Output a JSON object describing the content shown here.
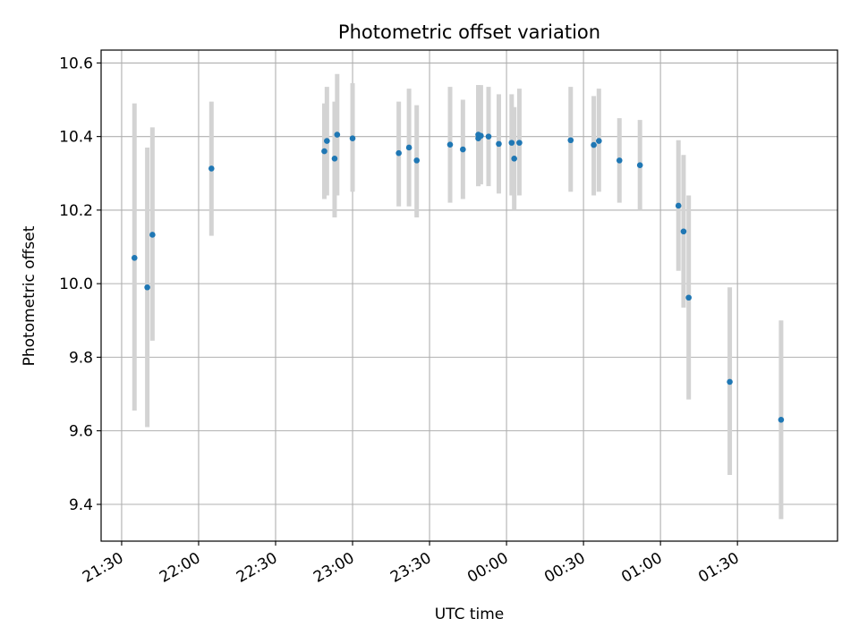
{
  "chart_data": {
    "type": "scatter",
    "title": "Photometric offset variation",
    "xlabel": "UTC time",
    "ylabel": "Photometric offset",
    "grid": true,
    "xlim": [
      "21:22",
      "02:09"
    ],
    "ylim": [
      9.3,
      10.635
    ],
    "x_ticks": [
      "21:30",
      "22:00",
      "22:30",
      "23:00",
      "23:30",
      "00:00",
      "00:30",
      "01:00",
      "01:30"
    ],
    "y_ticks": [
      9.4,
      9.6,
      9.8,
      10.0,
      10.2,
      10.4,
      10.6
    ],
    "point_color": "#1f77b4",
    "errorbar_color": "#d3d3d3",
    "series": [
      {
        "points": [
          {
            "x": "21:35",
            "y": 10.07,
            "low": 9.655,
            "high": 10.49
          },
          {
            "x": "21:40",
            "y": 9.99,
            "low": 9.61,
            "high": 10.37
          },
          {
            "x": "21:42",
            "y": 10.133,
            "low": 9.845,
            "high": 10.425
          },
          {
            "x": "22:05",
            "y": 10.313,
            "low": 10.13,
            "high": 10.495
          },
          {
            "x": "22:49",
            "y": 10.36,
            "low": 10.23,
            "high": 10.49
          },
          {
            "x": "22:50",
            "y": 10.388,
            "low": 10.24,
            "high": 10.535
          },
          {
            "x": "22:53",
            "y": 10.34,
            "low": 10.18,
            "high": 10.495
          },
          {
            "x": "22:54",
            "y": 10.405,
            "low": 10.24,
            "high": 10.57
          },
          {
            "x": "23:00",
            "y": 10.395,
            "low": 10.25,
            "high": 10.545
          },
          {
            "x": "23:18",
            "y": 10.355,
            "low": 10.21,
            "high": 10.495
          },
          {
            "x": "23:22",
            "y": 10.37,
            "low": 10.21,
            "high": 10.53
          },
          {
            "x": "23:25",
            "y": 10.335,
            "low": 10.18,
            "high": 10.485
          },
          {
            "x": "23:38",
            "y": 10.378,
            "low": 10.22,
            "high": 10.535
          },
          {
            "x": "23:43",
            "y": 10.365,
            "low": 10.23,
            "high": 10.5
          },
          {
            "x": "23:49",
            "y": 10.395,
            "low": 10.265,
            "high": 10.54
          },
          {
            "x": "23:49",
            "y": 10.405,
            "low": 10.265,
            "high": 10.54
          },
          {
            "x": "23:50",
            "y": 10.402,
            "low": 10.27,
            "high": 10.54
          },
          {
            "x": "23:53",
            "y": 10.4,
            "low": 10.265,
            "high": 10.535
          },
          {
            "x": "23:57",
            "y": 10.38,
            "low": 10.245,
            "high": 10.515
          },
          {
            "x": "00:02",
            "y": 10.383,
            "low": 10.24,
            "high": 10.515
          },
          {
            "x": "00:03",
            "y": 10.34,
            "low": 10.2,
            "high": 10.48
          },
          {
            "x": "00:05",
            "y": 10.383,
            "low": 10.24,
            "high": 10.53
          },
          {
            "x": "00:25",
            "y": 10.39,
            "low": 10.25,
            "high": 10.535
          },
          {
            "x": "00:34",
            "y": 10.377,
            "low": 10.24,
            "high": 10.51
          },
          {
            "x": "00:36",
            "y": 10.388,
            "low": 10.25,
            "high": 10.53
          },
          {
            "x": "00:44",
            "y": 10.335,
            "low": 10.22,
            "high": 10.45
          },
          {
            "x": "00:52",
            "y": 10.322,
            "low": 10.2,
            "high": 10.445
          },
          {
            "x": "01:07",
            "y": 10.212,
            "low": 10.035,
            "high": 10.39
          },
          {
            "x": "01:09",
            "y": 10.142,
            "low": 9.935,
            "high": 10.35
          },
          {
            "x": "01:11",
            "y": 9.962,
            "low": 9.685,
            "high": 10.24
          },
          {
            "x": "01:27",
            "y": 9.733,
            "low": 9.48,
            "high": 9.99
          },
          {
            "x": "01:47",
            "y": 9.63,
            "low": 9.36,
            "high": 9.9
          }
        ]
      }
    ]
  }
}
